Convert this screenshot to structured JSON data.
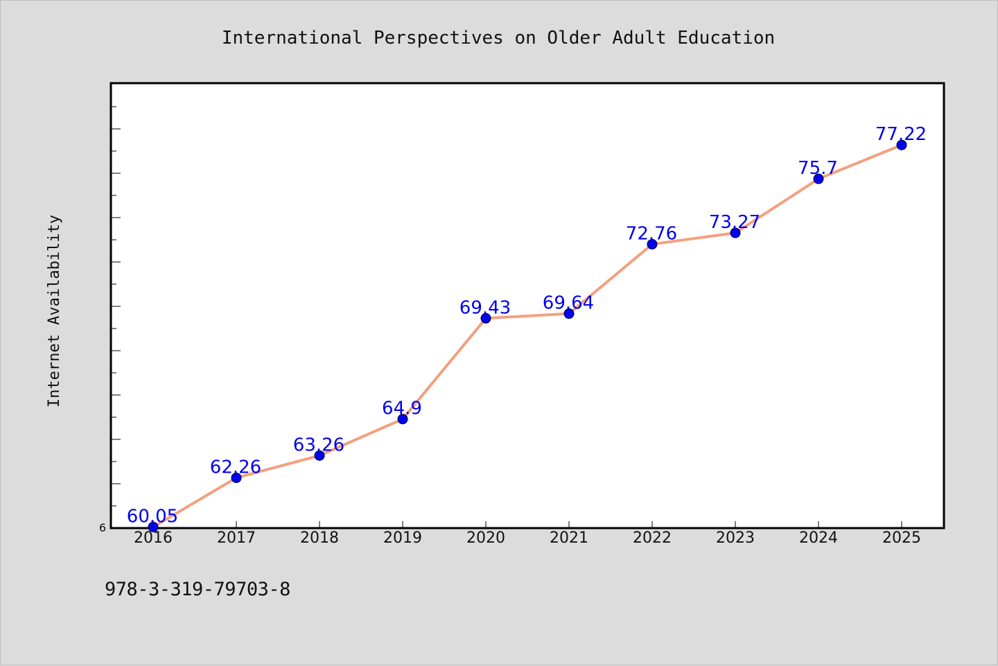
{
  "chart_data": {
    "type": "line",
    "title": "International Perspectives on Older Adult Education",
    "xlabel": "",
    "ylabel": "Internet Availability",
    "categories": [
      "2016",
      "2017",
      "2018",
      "2019",
      "2020",
      "2021",
      "2022",
      "2023",
      "2024",
      "2025"
    ],
    "series": [
      {
        "values": [
          60.05,
          62.26,
          63.26,
          64.9,
          69.43,
          69.64,
          72.76,
          73.27,
          75.7,
          77.22
        ],
        "data_labels": [
          "60.05",
          "62.26",
          "63.26",
          "64.9",
          "69.43",
          "69.64",
          "72.76",
          "73.27",
          "75.7",
          "77.22"
        ]
      }
    ],
    "y_tick_label": "6",
    "ylim": [
      60.0,
      80.0
    ],
    "grid": false,
    "line_color": "#f4a07f",
    "marker_color": "#0000ee",
    "label_color": "#0000ee"
  },
  "footnote": "978-3-319-79703-8"
}
